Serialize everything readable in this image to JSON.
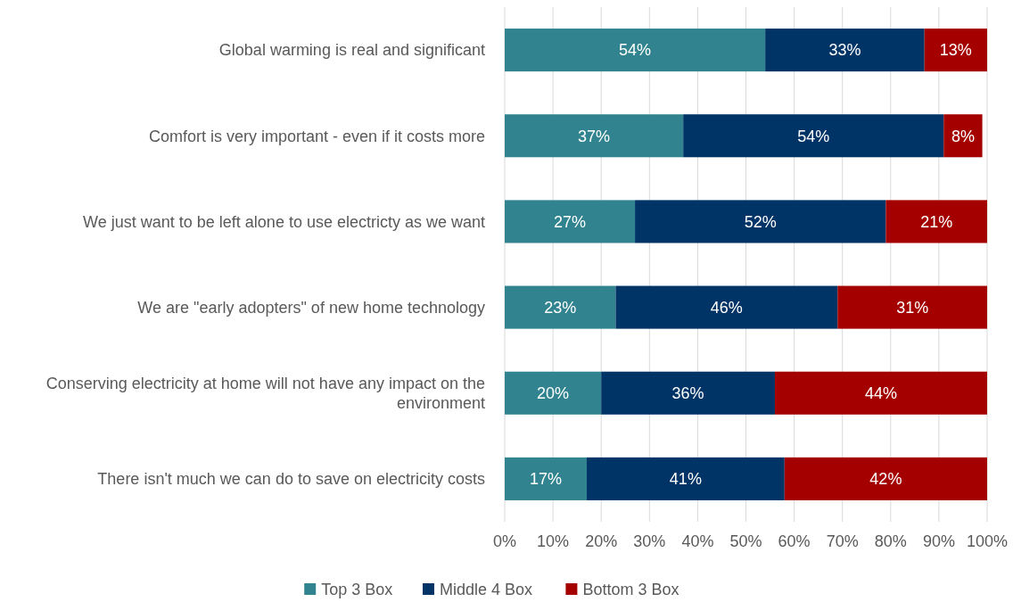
{
  "chart_data": {
    "type": "bar",
    "orientation": "horizontal",
    "stacked": true,
    "categories": [
      "Global warming is real and significant",
      "Comfort is very important - even if it costs more",
      "We just want to be left alone to use electricty as we want",
      "We are \"early adopters\" of new home technology",
      "Conserving electricity at home will not have any impact on the environment",
      "There isn't much we can do to save on electricity costs"
    ],
    "series": [
      {
        "name": "Top 3 Box",
        "color": "#31848f",
        "values": [
          54,
          37,
          27,
          23,
          20,
          17
        ],
        "value_labels": [
          "54%",
          "37%",
          "27%",
          "23%",
          "20%",
          "17%"
        ]
      },
      {
        "name": "Middle 4 Box",
        "color": "#003466",
        "values": [
          33,
          54,
          52,
          46,
          36,
          41
        ],
        "value_labels": [
          "33%",
          "54%",
          "52%",
          "46%",
          "36%",
          "41%"
        ]
      },
      {
        "name": "Bottom 3 Box",
        "color": "#a50000",
        "values": [
          13,
          8,
          21,
          31,
          44,
          42
        ],
        "value_labels": [
          "13%",
          "8%",
          "21%",
          "31%",
          "44%",
          "42%"
        ]
      }
    ],
    "xlim": [
      0,
      100
    ],
    "xticks": [
      {
        "value": 0,
        "label": "0%"
      },
      {
        "value": 10,
        "label": "10%"
      },
      {
        "value": 20,
        "label": "20%"
      },
      {
        "value": 30,
        "label": "30%"
      },
      {
        "value": 40,
        "label": "40%"
      },
      {
        "value": 50,
        "label": "50%"
      },
      {
        "value": 60,
        "label": "60%"
      },
      {
        "value": 70,
        "label": "70%"
      },
      {
        "value": 80,
        "label": "80%"
      },
      {
        "value": 90,
        "label": "90%"
      },
      {
        "value": 100,
        "label": "100%"
      }
    ],
    "grid": "x",
    "legend": "bottom"
  }
}
